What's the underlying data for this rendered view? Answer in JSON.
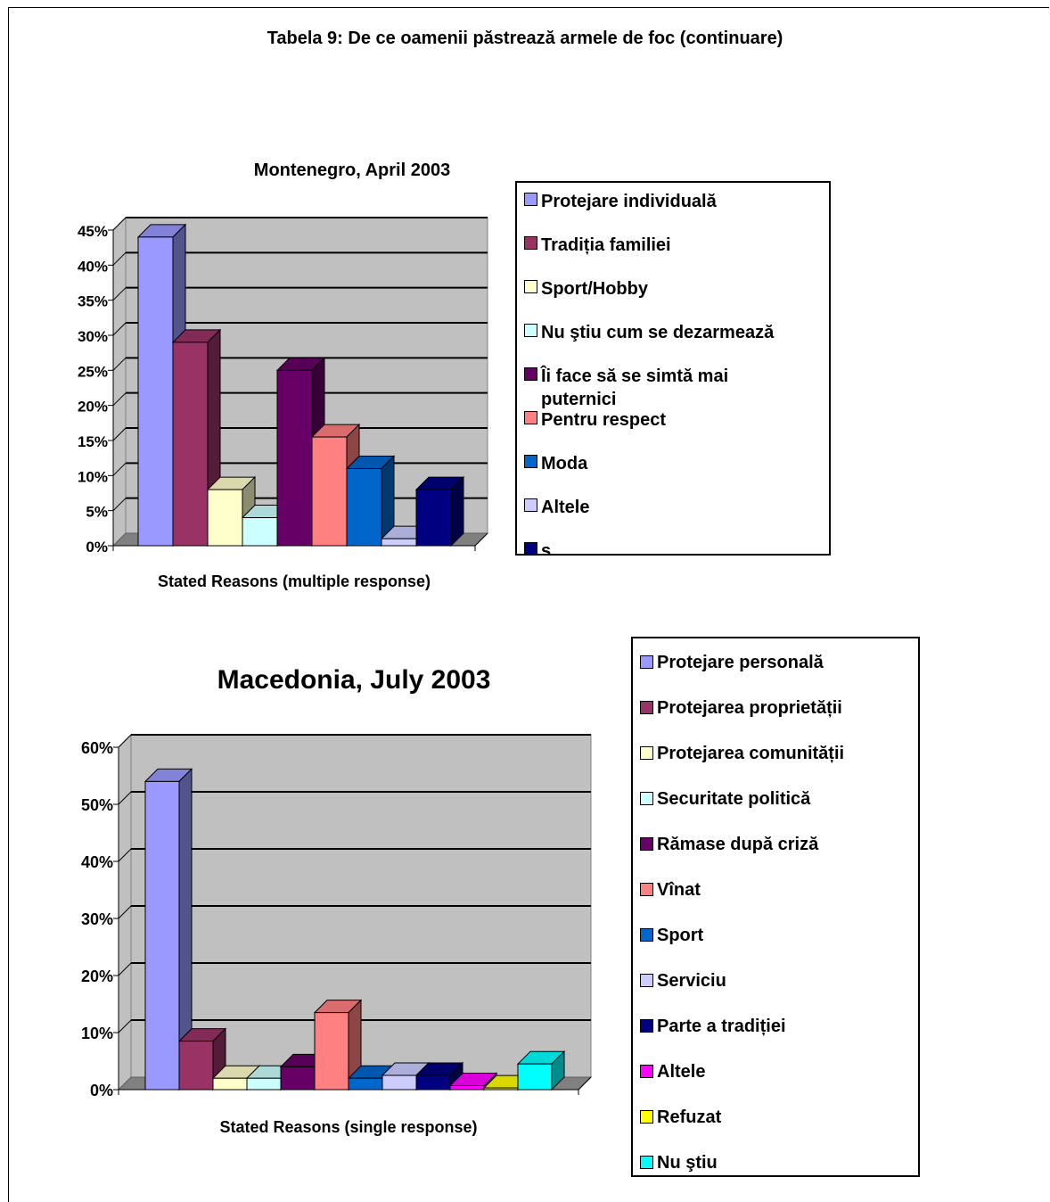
{
  "page_title": "Tabela 9: De ce oamenii păstrează armele de foc (continuare)",
  "chart_data": [
    {
      "type": "bar",
      "title": "Montenegro, April 2003",
      "xlabel": "Stated Reasons (multiple response)",
      "ylabel": "",
      "ylim": [
        0,
        45
      ],
      "yticks": [
        "0%",
        "5%",
        "10%",
        "15%",
        "20%",
        "25%",
        "30%",
        "35%",
        "40%",
        "45%"
      ],
      "grid": true,
      "legend_position": "right",
      "series": [
        {
          "name": "Protejare individuală",
          "value": 44,
          "color": "#9999ff"
        },
        {
          "name": "Tradiția familiei",
          "value": 29,
          "color": "#993366"
        },
        {
          "name": "Sport/Hobby",
          "value": 8,
          "color": "#ffffcc"
        },
        {
          "name": "Nu ştiu cum se dezarmează",
          "value": 4,
          "color": "#ccffff"
        },
        {
          "name": "Îi face să se simtă mai puternici",
          "value": 25,
          "color": "#660066"
        },
        {
          "name": "Pentru respect",
          "value": 15.5,
          "color": "#ff8080"
        },
        {
          "name": "Moda",
          "value": 11,
          "color": "#0066cc"
        },
        {
          "name": "Altele",
          "value": 1,
          "color": "#ccccff"
        },
        {
          "name": "s",
          "value": 8,
          "color": "#000080"
        }
      ]
    },
    {
      "type": "bar",
      "title": "Macedonia, July 2003",
      "xlabel": "Stated Reasons (single response)",
      "ylabel": "",
      "ylim": [
        0,
        60
      ],
      "yticks": [
        "0%",
        "10%",
        "20%",
        "30%",
        "40%",
        "50%",
        "60%"
      ],
      "grid": true,
      "legend_position": "right",
      "series": [
        {
          "name": "Protejare personală",
          "value": 54,
          "color": "#9999ff"
        },
        {
          "name": "Protejarea proprietății",
          "value": 8.5,
          "color": "#993366"
        },
        {
          "name": "Protejarea comunității",
          "value": 2,
          "color": "#ffffcc"
        },
        {
          "name": "Securitate politică",
          "value": 2,
          "color": "#ccffff"
        },
        {
          "name": "Rămase după criză",
          "value": 4,
          "color": "#660066"
        },
        {
          "name": "Vînat",
          "value": 13.5,
          "color": "#ff8080"
        },
        {
          "name": "Sport",
          "value": 2,
          "color": "#0066cc"
        },
        {
          "name": "Serviciu",
          "value": 2.5,
          "color": "#ccccff"
        },
        {
          "name": "Parte a tradiției",
          "value": 2.5,
          "color": "#000080"
        },
        {
          "name": "Altele",
          "value": 0.7,
          "color": "#ff00ff"
        },
        {
          "name": "Refuzat",
          "value": 0.3,
          "color": "#ffff00"
        },
        {
          "name": "Nu ştiu",
          "value": 4.5,
          "color": "#00ffff"
        }
      ]
    }
  ]
}
